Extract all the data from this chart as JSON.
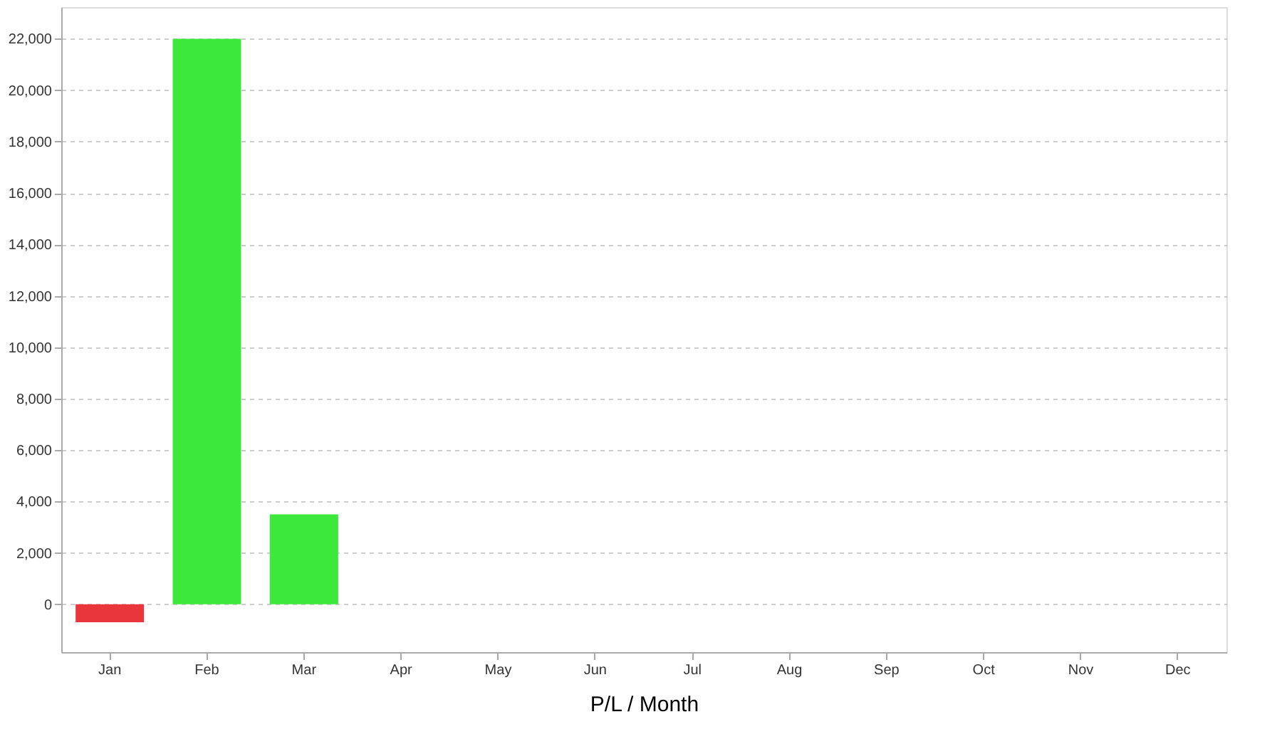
{
  "chart_data": {
    "type": "bar",
    "xlabel": "P/L / Month",
    "categories": [
      "Jan",
      "Feb",
      "Mar",
      "Apr",
      "May",
      "Jun",
      "Jul",
      "Aug",
      "Sep",
      "Oct",
      "Nov",
      "Dec"
    ],
    "values": [
      -700,
      22000,
      3500,
      null,
      null,
      null,
      null,
      null,
      null,
      null,
      null,
      null
    ],
    "colors": [
      "#e8363b",
      "#3ce83c",
      "#3ce83c",
      "#3ce83c",
      "#3ce83c",
      "#3ce83c",
      "#3ce83c",
      "#3ce83c",
      "#3ce83c",
      "#3ce83c",
      "#3ce83c",
      "#3ce83c"
    ],
    "ylim": [
      -1860,
      23230
    ],
    "yticks": [
      0,
      {
        "value": 2000,
        "label": "2,000"
      },
      {
        "value": 4000,
        "label": "4,000"
      },
      {
        "value": 6000,
        "label": "6,000"
      },
      {
        "value": 8000,
        "label": "8,000"
      },
      {
        "value": 10000,
        "label": "10,000"
      },
      {
        "value": 12000,
        "label": "12,000"
      },
      {
        "value": 14000,
        "label": "14,000"
      },
      {
        "value": 16000,
        "label": "16,000"
      },
      {
        "value": 18000,
        "label": "18,000"
      },
      {
        "value": 20000,
        "label": "20,000"
      },
      {
        "value": 22000,
        "label": "22,000"
      }
    ],
    "grid": "y"
  }
}
